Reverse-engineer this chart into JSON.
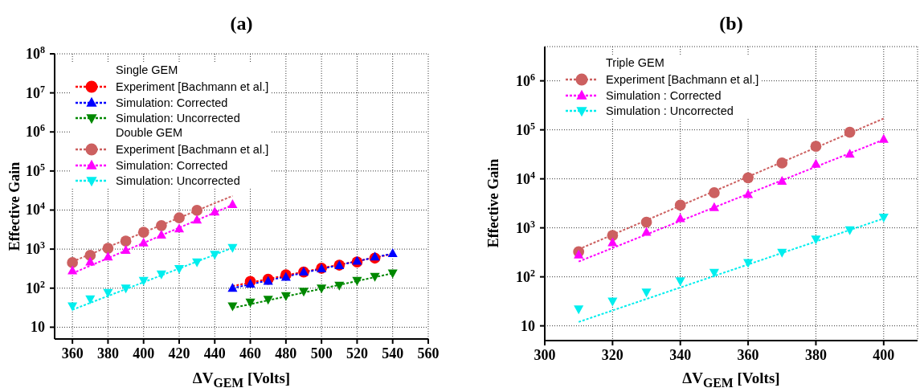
{
  "chart_data": [
    {
      "type": "scatter",
      "title": "(a)",
      "xlabel": "ΔV$_{GEM}$ [Volts]",
      "ylabel": "Effective Gain",
      "log": "y",
      "grid": true,
      "legend": "top left",
      "xlim": [
        350,
        560
      ],
      "xticks": [
        360,
        380,
        400,
        420,
        440,
        460,
        480,
        500,
        520,
        540,
        560
      ],
      "ylim": [
        5,
        100000000
      ],
      "yticks": [
        10,
        {
          "value": 100,
          "label": "10$^{2}$"
        },
        {
          "value": 1000,
          "label": "10$^{3}$"
        },
        {
          "value": 10000,
          "label": "10$^{4}$"
        },
        {
          "value": 100000,
          "label": "10$^{5}$"
        },
        {
          "value": 1000000,
          "label": "10$^{6}$"
        },
        {
          "value": 10000000,
          "label": "10$^{7}$"
        },
        {
          "value": 100000000,
          "label": "10$^{8}$"
        }
      ],
      "annotations": [
        "Single GEM",
        "Double GEM"
      ],
      "series": [
        {
          "type": "scatter",
          "name": "Experiment [Bachmann et al.]",
          "color": "#ff0000",
          "marker": "circle",
          "x": [
            460,
            470,
            480,
            490,
            500,
            510,
            520,
            530
          ],
          "values": [
            148,
            170,
            220,
            260,
            325,
            390,
            470,
            590
          ]
        },
        {
          "type": "scatter",
          "name": "Simulation: Corrected",
          "color": "#0000ff",
          "marker": "triangle",
          "x": [
            450,
            460,
            470,
            480,
            490,
            500,
            510,
            520,
            530,
            540
          ],
          "values": [
            100,
            127,
            150,
            190,
            260,
            315,
            380,
            490,
            630,
            770
          ]
        },
        {
          "type": "scatter",
          "name": "Simulation: Uncorrected",
          "color": "#008800",
          "marker": "triangle-down",
          "x": [
            450,
            460,
            470,
            480,
            490,
            500,
            510,
            520,
            530,
            540
          ],
          "values": [
            35,
            44,
            52,
            64,
            83,
            100,
            118,
            157,
            200,
            245
          ]
        },
        {
          "type": "scatter",
          "name": "Experiment [Bachmann et al.]",
          "color": "#cc6060",
          "marker": "circle",
          "x": [
            360,
            370,
            380,
            390,
            400,
            410,
            420,
            430
          ],
          "values": [
            450,
            690,
            1050,
            1600,
            2700,
            4000,
            6300,
            9800
          ]
        },
        {
          "type": "scatter",
          "name": "Simulation: Corrected",
          "color": "#ff00ff",
          "marker": "triangle",
          "x": [
            360,
            370,
            380,
            390,
            400,
            410,
            420,
            430,
            440,
            450
          ],
          "values": [
            280,
            470,
            630,
            930,
            1450,
            2300,
            3300,
            5600,
            8900,
            13800
          ]
        },
        {
          "type": "scatter",
          "name": "Simulation: Uncorrected",
          "color": "#00eeee",
          "marker": "triangle-down",
          "x": [
            360,
            370,
            380,
            390,
            400,
            410,
            420,
            430,
            440,
            450
          ],
          "values": [
            35,
            53,
            77,
            100,
            157,
            230,
            315,
            470,
            730,
            1100
          ]
        },
        {
          "type": "line",
          "color": "#ff0000",
          "line_style": "dotted",
          "x": [
            450,
            540
          ],
          "values": [
            113,
            750
          ]
        },
        {
          "type": "line",
          "color": "#0000ff",
          "line_style": "dotted",
          "x": [
            450,
            540
          ],
          "values": [
            100,
            770
          ]
        },
        {
          "type": "line",
          "color": "#008800",
          "line_style": "dotted",
          "x": [
            450,
            540
          ],
          "values": [
            31,
            240
          ]
        },
        {
          "type": "line",
          "color": "#cc6060",
          "line_style": "dotted",
          "x": [
            360,
            450
          ],
          "values": [
            480,
            23000
          ]
        },
        {
          "type": "line",
          "color": "#ff00ff",
          "line_style": "dotted",
          "x": [
            360,
            450
          ],
          "values": [
            240,
            13500
          ]
        },
        {
          "type": "line",
          "color": "#00eeee",
          "line_style": "dotted",
          "x": [
            360,
            450
          ],
          "values": [
            28,
            1080
          ]
        }
      ]
    },
    {
      "type": "scatter",
      "title": "(b)",
      "xlabel": "ΔV$_{GEM}$ [Volts]",
      "ylabel": "Effective Gain",
      "log": "y",
      "grid": true,
      "legend": "top left",
      "legend_title": "Triple GEM",
      "xlim": [
        300,
        410
      ],
      "xticks": [
        300,
        320,
        340,
        360,
        380,
        400
      ],
      "ylim": [
        5,
        5000000
      ],
      "yticks": [
        10,
        {
          "value": 100,
          "label": "10$^{2}$"
        },
        {
          "value": 1000,
          "label": "10$^{3}$"
        },
        {
          "value": 10000,
          "label": "10$^{4}$"
        },
        {
          "value": 100000,
          "label": "10$^{5}$"
        },
        {
          "value": 1000000,
          "label": "10$^{6}$"
        }
      ],
      "series": [
        {
          "type": "scatter",
          "name": "Experiment [Bachmann et al.]",
          "color": "#cc6060",
          "marker": "circle",
          "x": [
            310,
            320,
            330,
            340,
            350,
            360,
            370,
            380,
            390
          ],
          "values": [
            325,
            700,
            1300,
            2900,
            5200,
            10500,
            21000,
            46000,
            89000
          ]
        },
        {
          "type": "scatter",
          "name": "Simulation : Corrected",
          "color": "#ff00ff",
          "marker": "triangle",
          "x": [
            310,
            320,
            330,
            340,
            350,
            360,
            370,
            380,
            390,
            400
          ],
          "values": [
            280,
            500,
            810,
            1550,
            2600,
            4800,
            8900,
            20000,
            32000,
            64000
          ]
        },
        {
          "type": "scatter",
          "name": "Simulation : Uncorrected",
          "color": "#00eeee",
          "marker": "triangle-down",
          "x": [
            310,
            320,
            330,
            340,
            350,
            360,
            370,
            380,
            390,
            400
          ],
          "values": [
            22,
            32,
            49,
            83,
            123,
            195,
            315,
            590,
            910,
            1650
          ]
        },
        {
          "type": "line",
          "color": "#cc6060",
          "line_style": "dotted",
          "x": [
            310,
            400
          ],
          "values": [
            365,
            170000
          ]
        },
        {
          "type": "line",
          "color": "#ff00ff",
          "line_style": "dotted",
          "x": [
            310,
            400
          ],
          "values": [
            205,
            63000
          ]
        },
        {
          "type": "line",
          "color": "#00eeee",
          "line_style": "dotted",
          "x": [
            310,
            400
          ],
          "values": [
            12,
            1550
          ]
        }
      ]
    }
  ]
}
